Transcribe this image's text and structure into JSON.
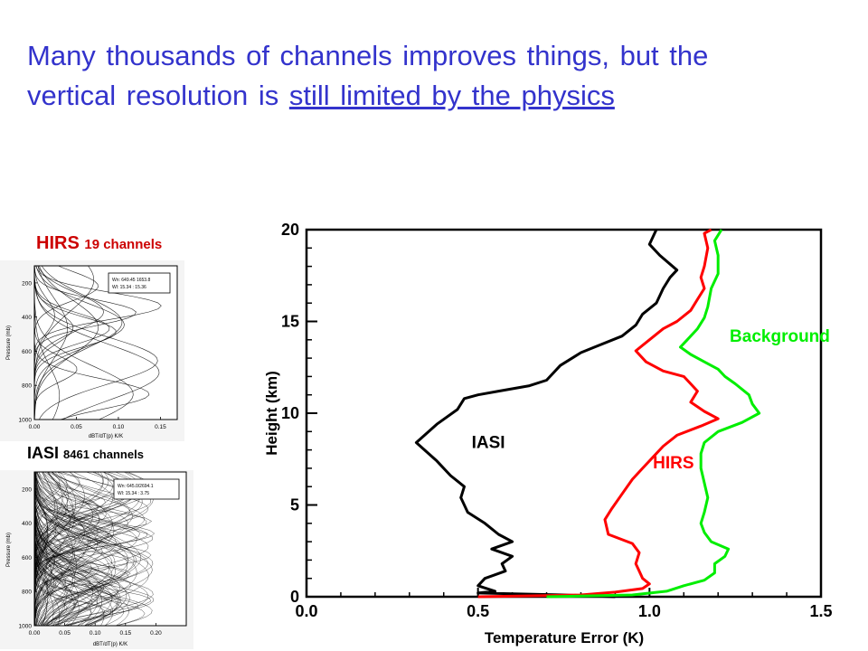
{
  "title": {
    "line1": "Many thousands of channels improves things, but the",
    "line2_plain": "vertical resolution is ",
    "line2_underlined": "still limited by the physics"
  },
  "hirs_panel": {
    "label_main": "HIRS",
    "label_sub": "19 channels",
    "legend_line1": "Wn: 649.45 1653.8",
    "legend_line2": "Wl: 15.34 : 15.36",
    "xlabel": "dBT/dT(p) K/K",
    "ylabel": "Pressure (mb)",
    "xticks": [
      "0.00",
      "0.05",
      "0.10",
      "0.15"
    ],
    "yticks": [
      "200",
      "400",
      "600",
      "800",
      "1000"
    ]
  },
  "iasi_panel": {
    "label_main": "IASI",
    "label_sub": "8461 channels",
    "legend_line1": "Wn: 645.0/2694.1",
    "legend_line2": "Wl: 15.34 : 3.75",
    "xlabel": "dBT/dT(p) K/K",
    "ylabel": "Pressure (mb)",
    "xticks": [
      "0.00",
      "0.05",
      "0.10",
      "0.15",
      "0.20"
    ],
    "yticks": [
      "200",
      "400",
      "600",
      "800",
      "1000"
    ]
  },
  "chart_data": {
    "type": "line",
    "title": "",
    "xlabel": "Temperature Error (K)",
    "ylabel": "Height (km)",
    "xlim": [
      0.0,
      1.5
    ],
    "ylim": [
      0,
      20
    ],
    "xticks": [
      "0.0",
      "0.5",
      "1.0",
      "1.5"
    ],
    "yticks": [
      "0",
      "5",
      "10",
      "15",
      "20"
    ],
    "grid": false,
    "series": [
      {
        "name": "IASI",
        "color": "#000000",
        "points": [
          [
            0.9,
            0.0
          ],
          [
            0.75,
            0.1
          ],
          [
            0.5,
            0.2
          ],
          [
            0.55,
            0.3
          ],
          [
            0.5,
            0.6
          ],
          [
            0.52,
            1.0
          ],
          [
            0.58,
            1.4
          ],
          [
            0.57,
            1.8
          ],
          [
            0.6,
            2.2
          ],
          [
            0.54,
            2.6
          ],
          [
            0.6,
            3.0
          ],
          [
            0.56,
            3.4
          ],
          [
            0.52,
            4.0
          ],
          [
            0.47,
            4.6
          ],
          [
            0.45,
            5.4
          ],
          [
            0.46,
            6.0
          ],
          [
            0.42,
            6.6
          ],
          [
            0.38,
            7.4
          ],
          [
            0.32,
            8.4
          ],
          [
            0.38,
            9.4
          ],
          [
            0.44,
            10.2
          ],
          [
            0.46,
            10.8
          ],
          [
            0.5,
            11.0
          ],
          [
            0.56,
            11.2
          ],
          [
            0.65,
            11.5
          ],
          [
            0.7,
            11.8
          ],
          [
            0.74,
            12.6
          ],
          [
            0.8,
            13.3
          ],
          [
            0.84,
            13.6
          ],
          [
            0.92,
            14.2
          ],
          [
            0.96,
            14.8
          ],
          [
            0.98,
            15.4
          ],
          [
            1.02,
            16.0
          ],
          [
            1.04,
            16.8
          ],
          [
            1.06,
            17.4
          ],
          [
            1.08,
            17.8
          ],
          [
            1.03,
            18.6
          ],
          [
            1.0,
            19.2
          ],
          [
            1.02,
            20.0
          ]
        ]
      },
      {
        "name": "HIRS",
        "color": "#ff0000",
        "points": [
          [
            0.5,
            0.0
          ],
          [
            0.8,
            0.1
          ],
          [
            0.9,
            0.25
          ],
          [
            0.98,
            0.45
          ],
          [
            1.0,
            0.7
          ],
          [
            0.98,
            1.0
          ],
          [
            0.97,
            1.4
          ],
          [
            0.96,
            1.8
          ],
          [
            0.97,
            2.4
          ],
          [
            0.95,
            2.9
          ],
          [
            0.88,
            3.4
          ],
          [
            0.87,
            4.2
          ],
          [
            0.89,
            4.8
          ],
          [
            0.92,
            5.6
          ],
          [
            0.95,
            6.4
          ],
          [
            0.98,
            7.0
          ],
          [
            1.01,
            7.6
          ],
          [
            1.04,
            8.2
          ],
          [
            1.08,
            8.8
          ],
          [
            1.15,
            9.3
          ],
          [
            1.2,
            9.7
          ],
          [
            1.16,
            10.1
          ],
          [
            1.12,
            10.6
          ],
          [
            1.14,
            11.2
          ],
          [
            1.12,
            11.6
          ],
          [
            1.1,
            12.0
          ],
          [
            1.04,
            12.3
          ],
          [
            0.99,
            12.8
          ],
          [
            0.96,
            13.4
          ],
          [
            1.0,
            14.0
          ],
          [
            1.04,
            14.6
          ],
          [
            1.08,
            15.0
          ],
          [
            1.12,
            15.6
          ],
          [
            1.14,
            16.2
          ],
          [
            1.16,
            16.8
          ],
          [
            1.15,
            17.4
          ],
          [
            1.16,
            18.0
          ],
          [
            1.17,
            19.0
          ],
          [
            1.16,
            19.8
          ],
          [
            1.18,
            20.0
          ]
        ]
      },
      {
        "name": "Background",
        "color": "#00ee00",
        "points": [
          [
            0.7,
            0.0
          ],
          [
            0.95,
            0.1
          ],
          [
            1.05,
            0.3
          ],
          [
            1.1,
            0.6
          ],
          [
            1.16,
            0.9
          ],
          [
            1.19,
            1.3
          ],
          [
            1.19,
            1.8
          ],
          [
            1.22,
            2.2
          ],
          [
            1.23,
            2.6
          ],
          [
            1.18,
            3.0
          ],
          [
            1.16,
            3.5
          ],
          [
            1.15,
            4.0
          ],
          [
            1.16,
            4.6
          ],
          [
            1.17,
            5.4
          ],
          [
            1.16,
            6.2
          ],
          [
            1.15,
            7.0
          ],
          [
            1.15,
            7.8
          ],
          [
            1.16,
            8.4
          ],
          [
            1.2,
            9.0
          ],
          [
            1.27,
            9.5
          ],
          [
            1.32,
            10.0
          ],
          [
            1.3,
            10.5
          ],
          [
            1.29,
            11.0
          ],
          [
            1.25,
            11.6
          ],
          [
            1.22,
            12.0
          ],
          [
            1.2,
            12.4
          ],
          [
            1.16,
            12.8
          ],
          [
            1.12,
            13.2
          ],
          [
            1.09,
            13.6
          ],
          [
            1.11,
            14.0
          ],
          [
            1.14,
            14.6
          ],
          [
            1.16,
            15.2
          ],
          [
            1.17,
            15.8
          ],
          [
            1.18,
            16.8
          ],
          [
            1.2,
            17.6
          ],
          [
            1.2,
            18.6
          ],
          [
            1.19,
            19.4
          ],
          [
            1.21,
            20.0
          ]
        ]
      }
    ],
    "annotations": [
      {
        "text": "IASI",
        "x": 0.53,
        "y": 8.1,
        "color": "#000000"
      },
      {
        "text": "HIRS",
        "x": 1.07,
        "y": 7.0,
        "color": "#ff0000"
      },
      {
        "text": "Background",
        "x": 1.38,
        "y": 13.9,
        "color": "#00ee00"
      }
    ]
  }
}
